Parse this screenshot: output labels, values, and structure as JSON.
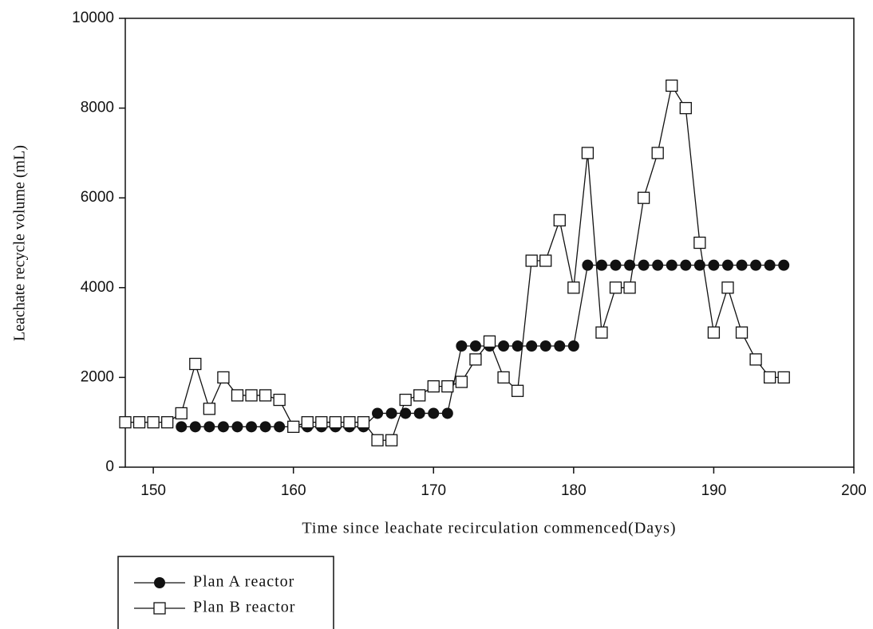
{
  "chart_data": {
    "type": "line",
    "x_label": "Time since leachate recirculation commenced(Days)",
    "y_label": "Leachate recycle volume (mL)",
    "xlim": [
      148,
      200
    ],
    "xticks": [
      150,
      160,
      170,
      180,
      190,
      200
    ],
    "ylim": [
      0,
      10000
    ],
    "yticks": [
      0,
      2000,
      4000,
      6000,
      8000,
      10000
    ],
    "legend": "bottom-left-outside",
    "series": [
      {
        "name": "Plan A reactor",
        "color": "#111111",
        "marker": "filled-circle",
        "x": [
          152,
          153,
          154,
          155,
          156,
          157,
          158,
          159,
          160,
          161,
          162,
          163,
          164,
          165,
          166,
          167,
          168,
          169,
          170,
          171,
          172,
          173,
          174,
          175,
          176,
          177,
          178,
          179,
          180,
          181,
          182,
          183,
          184,
          185,
          186,
          187,
          188,
          189,
          190,
          191,
          192,
          193,
          194,
          195
        ],
        "values": [
          900,
          900,
          900,
          900,
          900,
          900,
          900,
          900,
          900,
          900,
          900,
          900,
          900,
          900,
          1200,
          1200,
          1200,
          1200,
          1200,
          1200,
          2700,
          2700,
          2700,
          2700,
          2700,
          2700,
          2700,
          2700,
          2700,
          4500,
          4500,
          4500,
          4500,
          4500,
          4500,
          4500,
          4500,
          4500,
          4500,
          4500,
          4500,
          4500,
          4500,
          4500
        ]
      },
      {
        "name": "Plan B reactor",
        "color": "#111111",
        "marker": "open-square",
        "x": [
          148,
          149,
          150,
          151,
          152,
          153,
          154,
          155,
          156,
          157,
          158,
          159,
          160,
          161,
          162,
          163,
          164,
          165,
          166,
          167,
          168,
          169,
          170,
          171,
          172,
          173,
          174,
          175,
          176,
          177,
          178,
          179,
          180,
          181,
          182,
          183,
          184,
          185,
          186,
          187,
          188,
          189,
          190,
          191,
          192,
          193,
          194,
          195
        ],
        "values": [
          1000,
          1000,
          1000,
          1000,
          1200,
          2300,
          1300,
          2000,
          1600,
          1600,
          1600,
          1500,
          900,
          1000,
          1000,
          1000,
          1000,
          1000,
          600,
          600,
          1500,
          1600,
          1800,
          1800,
          1900,
          2400,
          2800,
          2000,
          1700,
          4600,
          4600,
          5500,
          4000,
          7000,
          3000,
          4000,
          4000,
          6000,
          7000,
          8500,
          8000,
          5000,
          3000,
          4000,
          3000,
          2400,
          2000,
          2000
        ]
      }
    ]
  }
}
